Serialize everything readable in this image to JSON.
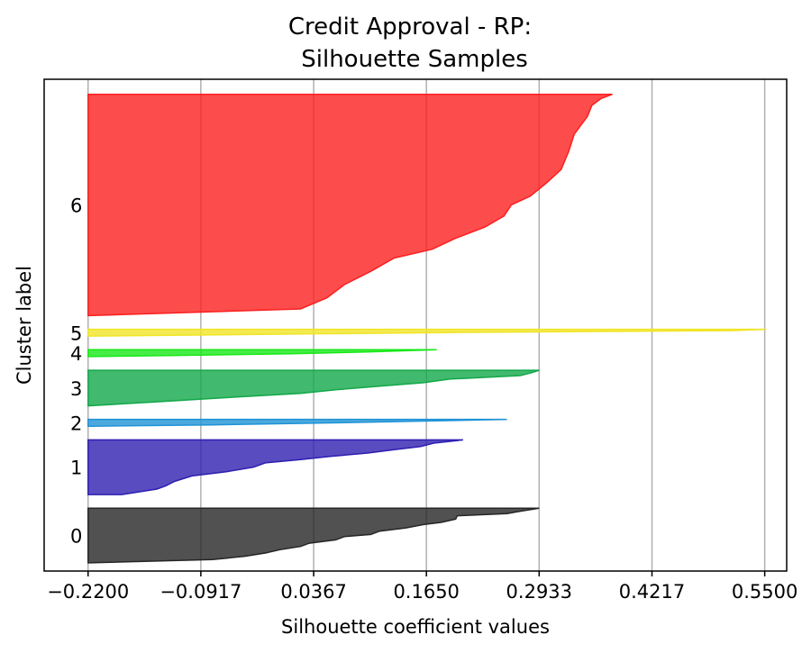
{
  "chart_data": {
    "type": "area",
    "title_lines": [
      "Credit Approval - RP:",
      "Silhouette Samples"
    ],
    "xlabel": "Silhouette coefficient values",
    "ylabel": "Cluster label",
    "x_ticks": [
      -0.22,
      -0.0917,
      0.0367,
      0.165,
      0.2933,
      0.4217,
      0.55
    ],
    "x_tick_labels": [
      "−0.2200",
      "−0.0917",
      "0.0367",
      "0.1650",
      "0.2933",
      "0.4217",
      "0.5500"
    ],
    "xlim": [
      -0.27,
      0.575
    ],
    "ylim": [
      0,
      360
    ],
    "grid": true,
    "clusters": [
      {
        "label": "0",
        "color": "#262626",
        "y_start": 6,
        "y_end": 46,
        "profile": [
          [
            0,
            0.2933
          ],
          [
            0.06,
            0.27
          ],
          [
            0.1,
            0.2567
          ],
          [
            0.14,
            0.2
          ],
          [
            0.2,
            0.1983
          ],
          [
            0.26,
            0.1817
          ],
          [
            0.3,
            0.1617
          ],
          [
            0.36,
            0.1417
          ],
          [
            0.42,
            0.1117
          ],
          [
            0.48,
            0.1017
          ],
          [
            0.52,
            0.0717
          ],
          [
            0.58,
            0.0617
          ],
          [
            0.64,
            0.0317
          ],
          [
            0.7,
            0.0217
          ],
          [
            0.76,
            -0.0017
          ],
          [
            0.82,
            -0.0183
          ],
          [
            0.88,
            -0.0417
          ],
          [
            0.94,
            -0.0783
          ],
          [
            1,
            -0.2183
          ]
        ]
      },
      {
        "label": "1",
        "color": "#2e1fb0",
        "y_start": 56,
        "y_end": 96,
        "profile": [
          [
            0,
            0.2067
          ],
          [
            0.06,
            0.1733
          ],
          [
            0.12,
            0.1583
          ],
          [
            0.18,
            0.1283
          ],
          [
            0.24,
            0.0983
          ],
          [
            0.3,
            0.0567
          ],
          [
            0.36,
            0.0217
          ],
          [
            0.42,
            -0.0183
          ],
          [
            0.5,
            -0.0317
          ],
          [
            0.58,
            -0.0617
          ],
          [
            0.66,
            -0.1017
          ],
          [
            0.76,
            -0.1217
          ],
          [
            0.84,
            -0.1317
          ],
          [
            0.9,
            -0.1417
          ],
          [
            1,
            -0.1817
          ]
        ]
      },
      {
        "label": "2",
        "color": "#1f93d6",
        "y_start": 106,
        "y_end": 111,
        "profile": [
          [
            0,
            0.2567
          ],
          [
            0.25,
            0.1617
          ],
          [
            0.55,
            0.0417
          ],
          [
            0.8,
            -0.0783
          ],
          [
            1,
            -0.2183
          ]
        ]
      },
      {
        "label": "3",
        "color": "#12a84a",
        "y_start": 121,
        "y_end": 147,
        "profile": [
          [
            0,
            0.2933
          ],
          [
            0.08,
            0.2833
          ],
          [
            0.15,
            0.2717
          ],
          [
            0.25,
            0.1917
          ],
          [
            0.35,
            0.1617
          ],
          [
            0.45,
            0.1117
          ],
          [
            0.55,
            0.0617
          ],
          [
            0.65,
            0.0217
          ],
          [
            0.75,
            -0.0483
          ],
          [
            0.9,
            -0.1483
          ],
          [
            1,
            -0.2183
          ]
        ]
      },
      {
        "label": "4",
        "color": "#18e818",
        "y_start": 157,
        "y_end": 162,
        "profile": [
          [
            0,
            0.1767
          ],
          [
            0.3,
            0.1017
          ],
          [
            0.6,
            0.0117
          ],
          [
            0.85,
            -0.1283
          ],
          [
            1,
            -0.2183
          ]
        ]
      },
      {
        "label": "5",
        "color": "#f0e528",
        "y_start": 172,
        "y_end": 177,
        "profile": [
          [
            0,
            0.5517
          ],
          [
            0.2,
            0.5117
          ],
          [
            0.45,
            0.2117
          ],
          [
            0.7,
            0.0117
          ],
          [
            1,
            -0.2183
          ]
        ]
      },
      {
        "label": "6",
        "color": "#fc1f1f",
        "y_start": 187,
        "y_end": 349,
        "profile": [
          [
            0,
            0.3767
          ],
          [
            0.02,
            0.3633
          ],
          [
            0.05,
            0.3533
          ],
          [
            0.1,
            0.3483
          ],
          [
            0.18,
            0.3333
          ],
          [
            0.26,
            0.3267
          ],
          [
            0.34,
            0.3183
          ],
          [
            0.4,
            0.3017
          ],
          [
            0.46,
            0.2833
          ],
          [
            0.5,
            0.2617
          ],
          [
            0.55,
            0.2533
          ],
          [
            0.6,
            0.2317
          ],
          [
            0.65,
            0.1983
          ],
          [
            0.7,
            0.1717
          ],
          [
            0.74,
            0.1283
          ],
          [
            0.8,
            0.1017
          ],
          [
            0.86,
            0.0717
          ],
          [
            0.92,
            0.0517
          ],
          [
            0.97,
            0.0217
          ],
          [
            1,
            -0.2183
          ]
        ]
      }
    ]
  }
}
